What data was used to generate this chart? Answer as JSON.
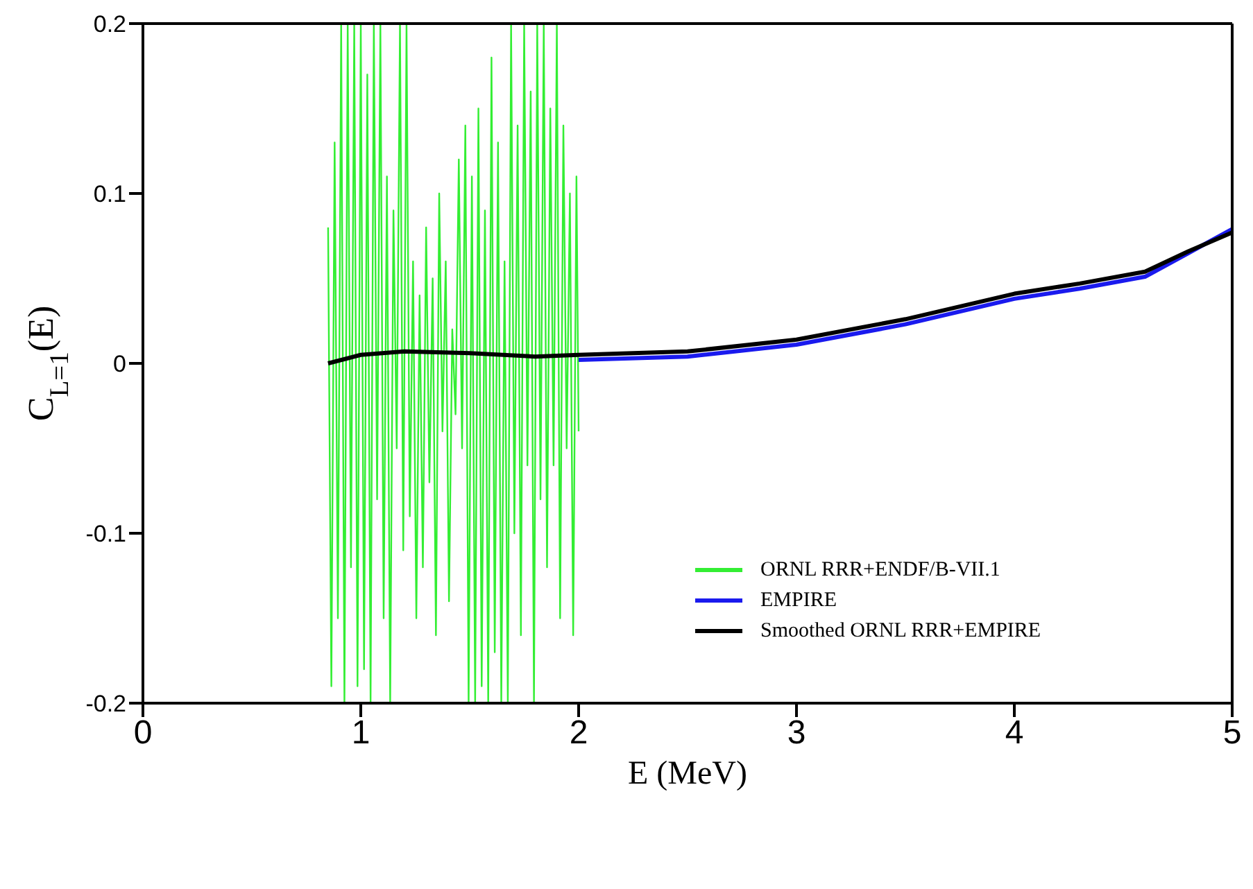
{
  "chart_data": {
    "type": "line",
    "xlabel": "E (MeV)",
    "ylabel": "C$_{L=1}$(E)",
    "xlim": [
      0,
      5
    ],
    "xticks": [
      0,
      1,
      2,
      3,
      4,
      5
    ],
    "ylim": [
      -0.2,
      0.2
    ],
    "yticks": [
      -0.2,
      -0.1,
      0,
      0.1,
      0.2
    ],
    "grid": false,
    "legend": "bottom right",
    "marker": "none",
    "line_style": "solid",
    "series": [
      {
        "name": "ORNL RRR+ENDF/B-VII.1",
        "color": "#33ee33",
        "x": [
          0.85,
          0.865,
          0.88,
          0.895,
          0.91,
          0.925,
          0.94,
          0.955,
          0.97,
          0.985,
          1.0,
          1.015,
          1.03,
          1.045,
          1.06,
          1.075,
          1.09,
          1.105,
          1.12,
          1.135,
          1.15,
          1.165,
          1.18,
          1.195,
          1.21,
          1.225,
          1.24,
          1.255,
          1.27,
          1.285,
          1.3,
          1.315,
          1.33,
          1.345,
          1.36,
          1.375,
          1.39,
          1.405,
          1.42,
          1.435,
          1.45,
          1.465,
          1.48,
          1.495,
          1.51,
          1.525,
          1.54,
          1.555,
          1.57,
          1.585,
          1.6,
          1.615,
          1.63,
          1.645,
          1.66,
          1.675,
          1.69,
          1.705,
          1.72,
          1.735,
          1.75,
          1.765,
          1.78,
          1.795,
          1.81,
          1.825,
          1.84,
          1.855,
          1.87,
          1.885,
          1.9,
          1.915,
          1.93,
          1.945,
          1.96,
          1.975,
          1.99,
          2.0
        ],
        "values": [
          0.08,
          -0.19,
          0.13,
          -0.15,
          0.2,
          -0.2,
          0.2,
          -0.12,
          0.2,
          -0.19,
          0.2,
          -0.18,
          0.17,
          -0.2,
          0.2,
          -0.08,
          0.2,
          -0.15,
          0.11,
          -0.2,
          0.09,
          -0.05,
          0.2,
          -0.11,
          0.2,
          -0.09,
          0.06,
          -0.15,
          0.04,
          -0.12,
          0.08,
          -0.07,
          0.05,
          -0.16,
          0.1,
          -0.04,
          0.06,
          -0.14,
          0.02,
          -0.03,
          0.12,
          -0.05,
          0.14,
          -0.2,
          0.11,
          -0.2,
          0.15,
          -0.19,
          0.09,
          -0.2,
          0.18,
          -0.17,
          0.13,
          -0.2,
          0.06,
          -0.2,
          0.2,
          -0.1,
          0.14,
          -0.16,
          0.2,
          -0.06,
          0.16,
          -0.2,
          0.2,
          -0.08,
          0.2,
          -0.12,
          0.15,
          -0.06,
          0.2,
          -0.15,
          0.14,
          -0.05,
          0.1,
          -0.16,
          0.11,
          -0.04
        ]
      },
      {
        "name": "EMPIRE",
        "color": "#1a1aee",
        "x": [
          2.0,
          2.5,
          3.0,
          3.5,
          4.0,
          4.3,
          4.6,
          4.8,
          5.0
        ],
        "values": [
          0.002,
          0.004,
          0.011,
          0.023,
          0.038,
          0.044,
          0.051,
          0.065,
          0.079
        ]
      },
      {
        "name": "Smoothed ORNL RRR+EMPIRE",
        "color": "#000000",
        "x": [
          0.85,
          1.0,
          1.2,
          1.5,
          1.8,
          2.0,
          2.5,
          3.0,
          3.5,
          4.0,
          4.3,
          4.6,
          4.8,
          5.0
        ],
        "values": [
          0,
          0.005,
          0.007,
          0.006,
          0.004,
          0.005,
          0.007,
          0.014,
          0.026,
          0.041,
          0.047,
          0.054,
          0.066,
          0.077
        ]
      }
    ]
  }
}
